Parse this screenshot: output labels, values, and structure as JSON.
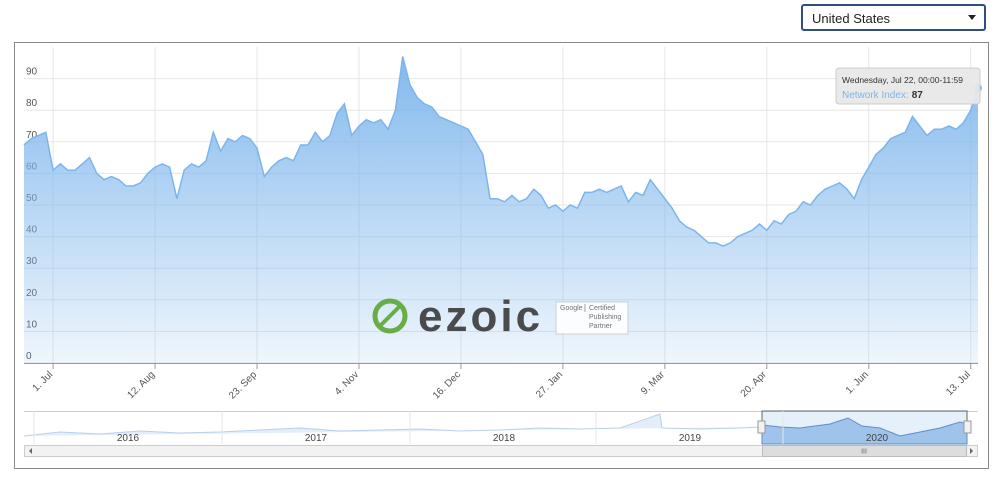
{
  "dropdown": {
    "selected": "United States"
  },
  "chart_data": {
    "type": "area",
    "color": "#7cb5ec",
    "categories": [
      null,
      null,
      null,
      null,
      "1. Jul",
      null,
      null,
      null,
      null,
      null,
      null,
      null,
      null,
      null,
      null,
      null,
      null,
      null,
      "12. Aug",
      null,
      null,
      null,
      null,
      null,
      null,
      null,
      null,
      null,
      null,
      null,
      null,
      null,
      "23. Sep",
      null,
      null,
      null,
      null,
      null,
      null,
      null,
      null,
      null,
      null,
      null,
      null,
      null,
      "4. Nov",
      null,
      null,
      null,
      null,
      null,
      null,
      null,
      null,
      null,
      null,
      null,
      null,
      null,
      "16. Dec",
      null,
      null,
      null,
      null,
      null,
      null,
      null,
      null,
      null,
      null,
      null,
      null,
      null,
      "27. Jan",
      null,
      null,
      null,
      null,
      null,
      null,
      null,
      null,
      null,
      null,
      null,
      null,
      null,
      "9. Mar",
      null,
      null,
      null,
      null,
      null,
      null,
      null,
      null,
      null,
      null,
      null,
      null,
      null,
      "20. Apr",
      null,
      null,
      null,
      null,
      null,
      null,
      null,
      null,
      null,
      null,
      null,
      null,
      null,
      "1. Jun",
      null,
      null,
      null,
      null,
      null,
      null,
      null,
      null,
      null,
      null,
      null,
      null,
      null,
      "13. Jul",
      null
    ],
    "series": [
      {
        "name": "Network Index",
        "color": "#7cb5ec",
        "values": [
          69,
          71,
          72,
          73,
          61,
          63,
          61,
          61,
          63,
          65,
          60,
          58,
          59,
          58,
          56,
          56,
          57,
          60,
          62,
          63,
          62,
          52,
          61,
          63,
          62,
          64,
          73,
          67,
          71,
          70,
          72,
          71,
          68,
          59,
          62,
          64,
          65,
          64,
          69,
          69,
          73,
          70,
          72,
          79,
          82,
          72,
          75,
          77,
          76,
          77,
          74,
          80,
          97,
          88,
          84,
          82,
          81,
          78,
          77,
          76,
          75,
          74,
          70,
          66,
          52,
          52,
          51,
          53,
          51,
          52,
          55,
          53,
          49,
          50,
          48,
          50,
          49,
          54,
          54,
          55,
          54,
          55,
          56,
          51,
          54,
          53,
          58,
          55,
          52,
          49,
          45,
          43,
          42,
          40,
          38,
          38,
          37,
          38,
          40,
          41,
          42,
          44,
          42,
          45,
          44,
          47,
          48,
          51,
          50,
          53,
          55,
          56,
          57,
          55,
          52,
          58,
          62,
          66,
          68,
          71,
          72,
          73,
          78,
          75,
          72,
          74,
          74,
          75,
          74,
          76,
          80,
          87
        ]
      }
    ],
    "ylim": [
      0,
      100
    ],
    "yticks": [
      0,
      10,
      20,
      30,
      40,
      50,
      60,
      70,
      80,
      90
    ],
    "grid": true,
    "tooltip": {
      "header": "Wednesday, Jul 22, 00:00-11:59",
      "label": "Network Index:"
    },
    "navigator": {
      "years": [
        "2016",
        "2017",
        "2018",
        "2019",
        "2020"
      ]
    },
    "watermark": {
      "brand": "ezoic",
      "badge": [
        "Google",
        "Certified",
        "Publishing",
        "Partner"
      ]
    }
  }
}
